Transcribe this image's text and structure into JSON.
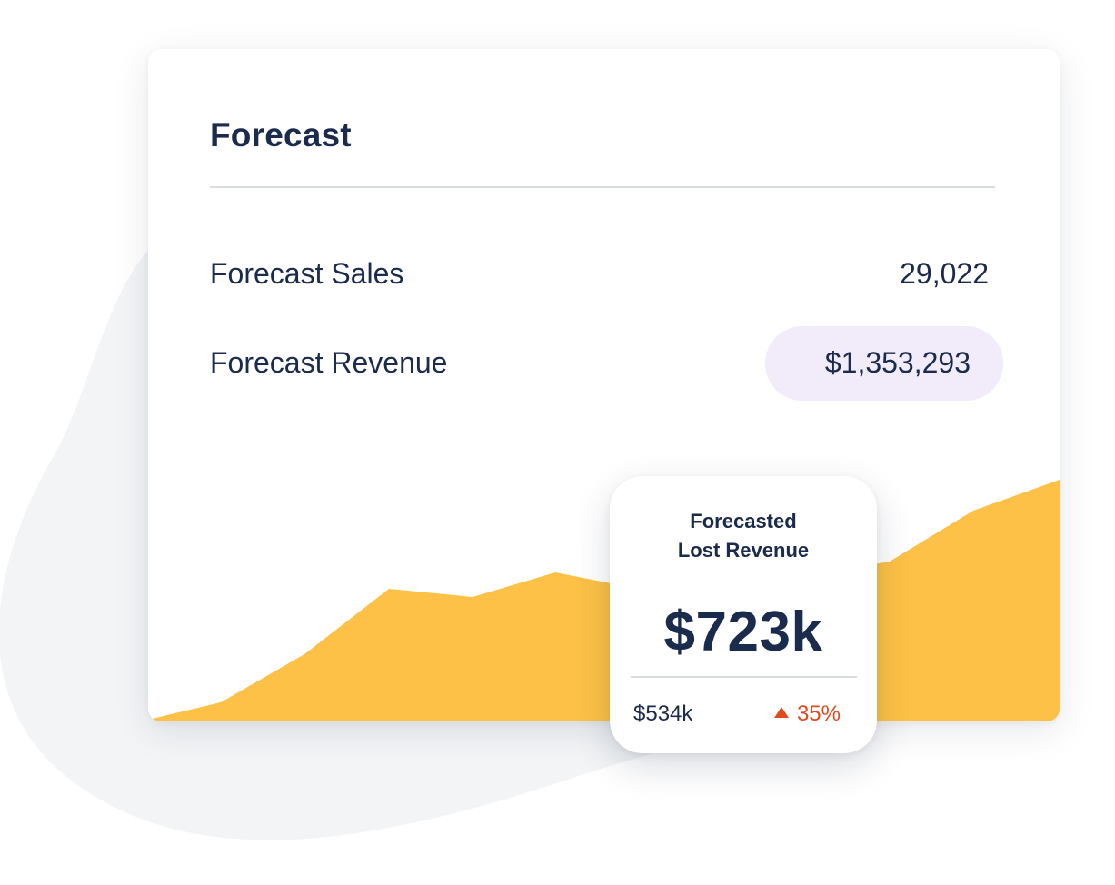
{
  "card": {
    "title": "Forecast",
    "rows": [
      {
        "label": "Forecast Sales",
        "value": "29,022"
      },
      {
        "label": "Forecast Revenue",
        "value": "$1,353,293"
      }
    ]
  },
  "popup": {
    "title_line1": "Forecasted",
    "title_line2": "Lost Revenue",
    "amount": "$723k",
    "previous": "$534k",
    "change": "35%",
    "change_direction": "up"
  },
  "colors": {
    "text": "#1b2b4d",
    "area_fill": "#fcc146",
    "pill_bg": "#f1ebfa",
    "change": "#e04a1f",
    "blob": "#f2f4f6"
  },
  "icons": {
    "change": "triangle-up-icon"
  }
}
